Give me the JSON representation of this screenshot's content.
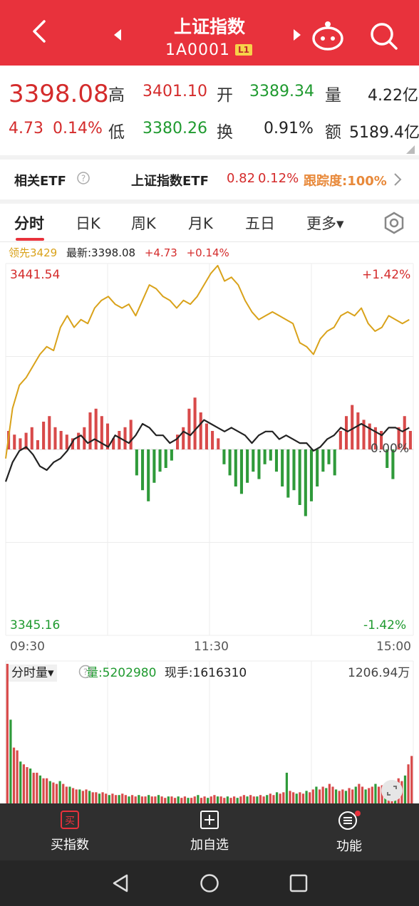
{
  "header": {
    "title": "上证指数",
    "code": "1A0001",
    "level_badge": "L1",
    "bg_color": "#e8323c"
  },
  "quote": {
    "price": "3398.08",
    "change": "4.73",
    "change_pct": "0.14%",
    "high_label": "高",
    "high": "3401.10",
    "open_label": "开",
    "open": "3389.34",
    "volume_label": "量",
    "volume": "4.22亿",
    "low_label": "低",
    "low": "3380.26",
    "turnover_label": "换",
    "turnover": "0.91%",
    "amount_label": "额",
    "amount": "5189.4亿"
  },
  "etf": {
    "label": "相关ETF",
    "name": "上证指数ETF",
    "value": "0.82",
    "pct": "0.12%",
    "tracking": "跟踪度:100%"
  },
  "tabs": [
    "分时",
    "日K",
    "周K",
    "月K",
    "五日",
    "更多▾"
  ],
  "info": {
    "leader": "领先3429",
    "latest": "最新:3398.08",
    "change": "+4.73",
    "pct": "+0.14%"
  },
  "chart_data": {
    "type": "line",
    "y_max_label": "3441.54",
    "y_min_label": "3345.16",
    "pct_max_label": "+1.42%",
    "pct_min_label": "-1.42%",
    "mid_label": "0.00%",
    "ylim": [
      3345.16,
      3441.54
    ],
    "x_ticks": [
      "09:30",
      "11:30",
      "15:00"
    ],
    "series": [
      {
        "name": "领先",
        "color": "#d9a21a",
        "values": [
          3391,
          3404,
          3410,
          3412,
          3415,
          3418,
          3420,
          3419,
          3425,
          3428,
          3425,
          3427,
          3426,
          3430,
          3432,
          3433,
          3431,
          3430,
          3431,
          3428,
          3432,
          3436,
          3435,
          3433,
          3432,
          3430,
          3432,
          3431,
          3433,
          3436,
          3439,
          3441,
          3437,
          3438,
          3436,
          3432,
          3429,
          3427,
          3428,
          3429,
          3428,
          3427,
          3426,
          3421,
          3420,
          3418,
          3422,
          3424,
          3425,
          3428,
          3429,
          3428,
          3430,
          3426,
          3424,
          3425,
          3428,
          3427,
          3426,
          3427
        ]
      },
      {
        "name": "最新",
        "color": "#222222",
        "values": [
          3385,
          3390,
          3393,
          3394,
          3392,
          3389,
          3388,
          3390,
          3391,
          3393,
          3396,
          3397,
          3395,
          3396,
          3395,
          3394,
          3397,
          3396,
          3395,
          3397,
          3400,
          3399,
          3397,
          3397,
          3395,
          3396,
          3398,
          3397,
          3399,
          3401,
          3400,
          3399,
          3398,
          3399,
          3398,
          3397,
          3395,
          3397,
          3398,
          3398,
          3396,
          3397,
          3396,
          3395,
          3395,
          3393,
          3394,
          3396,
          3397,
          3399,
          3398,
          3399,
          3400,
          3399,
          3398,
          3397,
          3399,
          3399,
          3398,
          3399
        ]
      }
    ],
    "bars": [
      10,
      8,
      6,
      9,
      12,
      5,
      15,
      18,
      12,
      10,
      8,
      6,
      9,
      12,
      20,
      22,
      18,
      14,
      6,
      10,
      12,
      16,
      -14,
      -22,
      -28,
      -18,
      -12,
      -10,
      -6,
      8,
      12,
      22,
      28,
      20,
      14,
      10,
      6,
      -8,
      -14,
      -20,
      -24,
      -18,
      -12,
      -16,
      -8,
      -6,
      -12,
      -20,
      -26,
      -22,
      -30,
      -36,
      -28,
      -20,
      -12,
      -8,
      -14,
      10,
      18,
      24,
      20,
      16,
      14,
      12,
      10,
      -10,
      -16,
      12,
      18,
      10
    ]
  },
  "volume": {
    "selector": "分时量▾",
    "amount": "量:5202980",
    "current": "现手:1616310",
    "max": "1206.94万",
    "bars": [
      100,
      60,
      40,
      38,
      30,
      28,
      26,
      25,
      22,
      22,
      20,
      18,
      18,
      16,
      15,
      14,
      16,
      14,
      12,
      12,
      11,
      10,
      10,
      9,
      10,
      9,
      8,
      8,
      7,
      8,
      7,
      6,
      7,
      6,
      6,
      7,
      6,
      5,
      6,
      5,
      6,
      5,
      5,
      6,
      5,
      5,
      6,
      5,
      4,
      5,
      5,
      4,
      5,
      4,
      5,
      4,
      4,
      5,
      6,
      4,
      5,
      4,
      5,
      6,
      5,
      5,
      4,
      5,
      4,
      5,
      4,
      5,
      6,
      5,
      6,
      5,
      5,
      6,
      5,
      6,
      7,
      6,
      8,
      7,
      8,
      22,
      9,
      8,
      7,
      8,
      7,
      9,
      8,
      10,
      12,
      10,
      12,
      11,
      14,
      12,
      10,
      9,
      10,
      9,
      11,
      10,
      12,
      14,
      12,
      10,
      11,
      12,
      14,
      12,
      13,
      12,
      15,
      14,
      16,
      18,
      16,
      20,
      28,
      34
    ]
  },
  "bottom": {
    "buy": "买指数",
    "buy_icon": "买",
    "add": "加自选",
    "func": "功能"
  }
}
